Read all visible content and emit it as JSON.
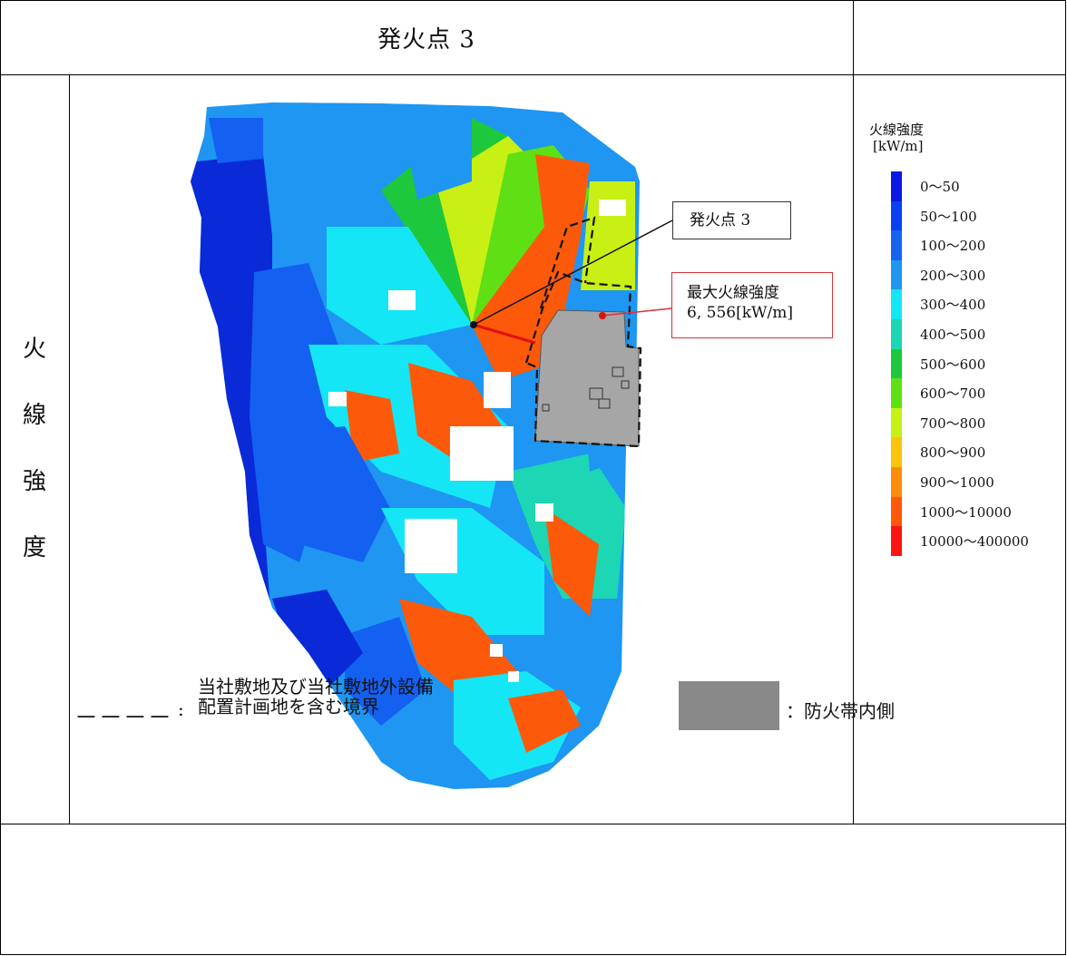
{
  "title": "発火点 3",
  "row_label": [
    "火",
    "線",
    "強",
    "度"
  ],
  "legend": {
    "title": "火線強度",
    "unit": "[kW/m]",
    "items": [
      {
        "label": "0～50",
        "color": "#0a18e6"
      },
      {
        "label": "50～100",
        "color": "#0b40f0"
      },
      {
        "label": "100～200",
        "color": "#1464f0"
      },
      {
        "label": "200～300",
        "color": "#1e96f2"
      },
      {
        "label": "300～400",
        "color": "#15e6f5"
      },
      {
        "label": "400～500",
        "color": "#1cd6b4"
      },
      {
        "label": "500～600",
        "color": "#1ec83c"
      },
      {
        "label": "600～700",
        "color": "#5ee014"
      },
      {
        "label": "700～800",
        "color": "#c8f014"
      },
      {
        "label": "800～900",
        "color": "#fcc40a"
      },
      {
        "label": "900～1000",
        "color": "#fc8c0a"
      },
      {
        "label": "1000～10000",
        "color": "#fc5a0a"
      },
      {
        "label": "10000～400000",
        "color": "#fc1414"
      }
    ]
  },
  "callouts": {
    "ignition": "発火点 3",
    "max_title": "最大火線強度",
    "max_value": "6, 556[kW/m]"
  },
  "footer": {
    "dashes": "－－－－",
    "colon": ":",
    "boundary_line1": "当社敷地及び当社敷地外設備",
    "boundary_line2": "配置計画地を含む境界",
    "inner_label": "：防火帯内側",
    "inner_color": "#898989"
  },
  "colors": {
    "dark_blue": "#0a2ad8",
    "mid_blue": "#1460f0",
    "light_blue": "#1e96f2",
    "cyan": "#15e6f5",
    "teal": "#1cd6b4",
    "green": "#1ec83c",
    "lime": "#c8f014",
    "orange": "#fc5a0a",
    "gray_zone": "#a6a6a6"
  }
}
